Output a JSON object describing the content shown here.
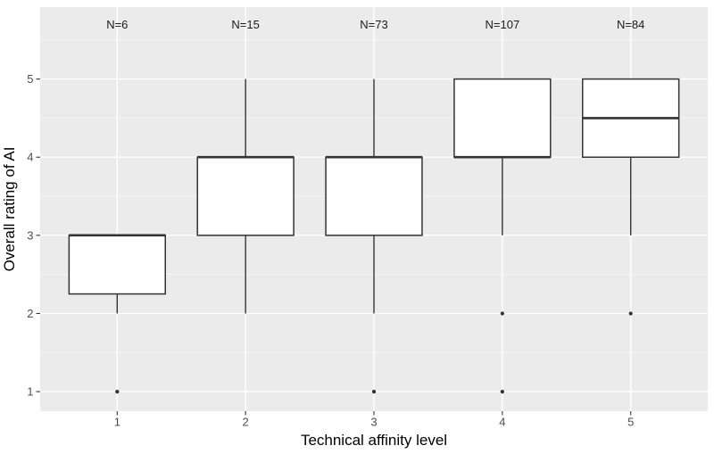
{
  "chart_data": {
    "type": "boxplot",
    "title": "",
    "xlabel": "Technical affinity level",
    "ylabel": "Overall rating of AI",
    "x_ticks": [
      "1",
      "2",
      "3",
      "4",
      "5"
    ],
    "y_ticks": [
      "1",
      "2",
      "3",
      "4",
      "5"
    ],
    "xlim": [
      0.4,
      5.6
    ],
    "ylim": [
      0.75,
      5.92
    ],
    "y_minor_gridlines": [
      1.5,
      2.5,
      3.5,
      4.5,
      5.5
    ],
    "grid": "on",
    "legend": "none",
    "box_width": 0.75,
    "n_label_y": 5.7,
    "groups": [
      {
        "x": 1,
        "n_label": "N=6",
        "q1": 2.25,
        "median": 3,
        "q3": 3,
        "whisker_low": 2,
        "whisker_high": 3,
        "outliers": [
          1
        ]
      },
      {
        "x": 2,
        "n_label": "N=15",
        "q1": 3,
        "median": 4,
        "q3": 4,
        "whisker_low": 2,
        "whisker_high": 5,
        "outliers": []
      },
      {
        "x": 3,
        "n_label": "N=73",
        "q1": 3,
        "median": 4,
        "q3": 4,
        "whisker_low": 2,
        "whisker_high": 5,
        "outliers": [
          1
        ]
      },
      {
        "x": 4,
        "n_label": "N=107",
        "q1": 4,
        "median": 4,
        "q3": 5,
        "whisker_low": 3,
        "whisker_high": 5,
        "outliers": [
          2,
          1
        ]
      },
      {
        "x": 5,
        "n_label": "N=84",
        "q1": 4,
        "median": 4.5,
        "q3": 5,
        "whisker_low": 3,
        "whisker_high": 5,
        "outliers": [
          2
        ]
      }
    ],
    "colors": {
      "outer_bg": "#FFFFFF",
      "panel_bg": "#EBEBEB",
      "grid_major": "#FFFFFF",
      "grid_minor": "#F5F5F5",
      "box_fill": "#FFFFFF",
      "box_stroke": "#333333",
      "tick_mark": "#333333",
      "tick_label": "#4D4D4D",
      "axis_title": "#000000",
      "n_label": "#1A1A1A"
    }
  }
}
